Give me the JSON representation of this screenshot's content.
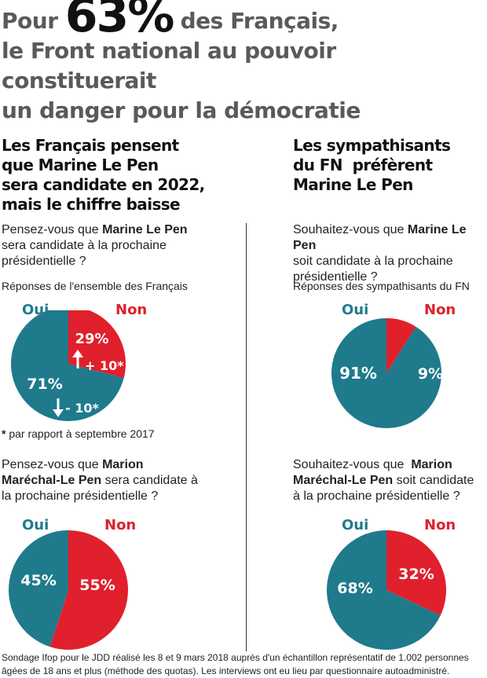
{
  "headline": {
    "line1_prefix": "Pour",
    "line1_big": "63%",
    "line1_suffix": "des Français,",
    "line2": "le Front national au pouvoir constituerait",
    "line3": "un danger pour la démocratie"
  },
  "left": {
    "subtitle": [
      "Les Français pensent",
      "que Marine Le Pen",
      "sera candidate en 2022,",
      "mais le chiffre baisse"
    ],
    "q1": {
      "pre": "Pensez-vous que ",
      "bold": "Marine Le Pen",
      "post": "sera candidate à la prochaine présidentielle ?"
    },
    "respondents": "Réponses de l'ensemble des Français",
    "q2": {
      "pre": "Pensez-vous que ",
      "bold": "Marion Maréchal-Le Pen",
      "post": " sera candidate à la prochaine présidentielle ?"
    },
    "footnote_star": "*",
    "footnote_text": " par rapport à septembre 2017"
  },
  "right": {
    "subtitle": [
      "Les sympathisants",
      "du FN  préfèrent",
      "Marine Le Pen"
    ],
    "q1": {
      "pre": "Souhaitez-vous que ",
      "bold": "Marine Le Pen",
      "post": "soit candidate à la prochaine présidentielle ?"
    },
    "respondents": "Réponses des sympathisants du FN",
    "q2": {
      "pre": "Souhaitez-vous que  ",
      "bold": "Marion Maréchal-Le Pen",
      "post": " soit candidate à la prochaine présidentielle ?"
    }
  },
  "legend": {
    "yes": "Oui",
    "no": "Non"
  },
  "colors": {
    "yes": "#1f7a8c",
    "no": "#e0202c"
  },
  "chart_data": [
    {
      "type": "pie",
      "categories": [
        "Oui",
        "Non"
      ],
      "values": [
        71,
        29
      ],
      "labels": [
        "71%",
        "29%"
      ],
      "changes": {
        "Non": "+ 10*",
        "Oui": "- 10*"
      }
    },
    {
      "type": "pie",
      "categories": [
        "Oui",
        "Non"
      ],
      "values": [
        91,
        9
      ],
      "labels": [
        "91%",
        "9%"
      ]
    },
    {
      "type": "pie",
      "categories": [
        "Oui",
        "Non"
      ],
      "values": [
        45,
        55
      ],
      "labels": [
        "45%",
        "55%"
      ]
    },
    {
      "type": "pie",
      "categories": [
        "Oui",
        "Non"
      ],
      "values": [
        68,
        32
      ],
      "labels": [
        "68%",
        "32%"
      ]
    }
  ],
  "source": "Sondage Ifop pour le JDD réalisé les 8 et 9 mars 2018 auprès d'un échantillon représentatif de 1.002 personnes âgées de 18 ans et plus (méthode des quotas). Les interviews ont eu lieu par questionnaire autoadministré."
}
